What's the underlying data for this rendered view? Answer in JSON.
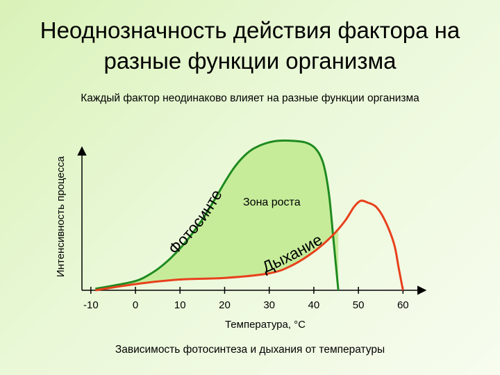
{
  "title": {
    "line1": "Неоднозначность действия фактора на",
    "line2": "разные функции организма"
  },
  "subtitle": "Каждый фактор неодинаково влияет на разные функции организма",
  "caption": "Зависимость фотосинтеза и дыхания от температуры",
  "colors": {
    "photosynthesis": "#1f8a1f",
    "photosynthesis_fill": "#c6ec9a",
    "respiration": "#e8401c",
    "axis": "#000000"
  },
  "chart_data": {
    "type": "line",
    "xlabel": "Температура, °С",
    "ylabel": "Интенсивность процесса",
    "xlim": [
      -12,
      64
    ],
    "ylim": [
      0,
      1
    ],
    "x_ticks": [
      -10,
      0,
      10,
      20,
      30,
      40,
      50,
      60
    ],
    "x_tick_labels": [
      "-10",
      "0",
      "10",
      "20",
      "30",
      "40",
      "50",
      "60"
    ],
    "grid": false,
    "series": [
      {
        "name": "Фотосинтез",
        "x": [
          -9,
          -5,
          0,
          3,
          6,
          9,
          12,
          15,
          18,
          20,
          22,
          24,
          26,
          28,
          30,
          32,
          35,
          38,
          40,
          41.5,
          42.5,
          43.5,
          44.5,
          45.5
        ],
        "y": [
          0.01,
          0.03,
          0.06,
          0.1,
          0.16,
          0.24,
          0.34,
          0.46,
          0.6,
          0.7,
          0.79,
          0.86,
          0.91,
          0.94,
          0.96,
          0.97,
          0.97,
          0.96,
          0.93,
          0.87,
          0.78,
          0.6,
          0.3,
          0.0
        ]
      },
      {
        "name": "Дыхание",
        "x": [
          -9,
          0,
          10,
          20,
          30,
          35,
          40,
          44,
          47,
          49,
          50.5,
          52,
          54,
          56,
          58,
          59,
          60
        ],
        "y": [
          0.0,
          0.04,
          0.07,
          0.08,
          0.11,
          0.16,
          0.25,
          0.35,
          0.45,
          0.54,
          0.58,
          0.57,
          0.54,
          0.45,
          0.3,
          0.15,
          0.0
        ]
      }
    ],
    "annotations": [
      {
        "text": "Зона роста"
      },
      {
        "text": "Фотосинтез"
      },
      {
        "text": "Дыхание"
      }
    ]
  }
}
